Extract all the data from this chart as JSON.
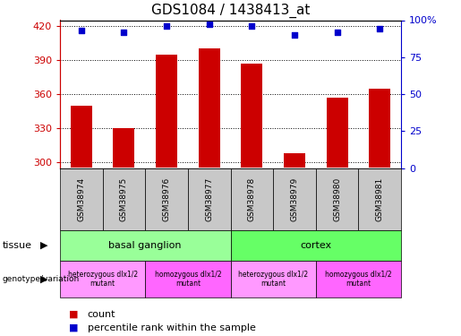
{
  "title": "GDS1084 / 1438413_at",
  "samples": [
    "GSM38974",
    "GSM38975",
    "GSM38976",
    "GSM38977",
    "GSM38978",
    "GSM38979",
    "GSM38980",
    "GSM38981"
  ],
  "counts": [
    350,
    330,
    395,
    400,
    387,
    308,
    357,
    365
  ],
  "percentiles": [
    93,
    92,
    96,
    97,
    96,
    90,
    92,
    94
  ],
  "ylim_left": [
    295,
    425
  ],
  "ylim_right": [
    0,
    100
  ],
  "yticks_left": [
    300,
    330,
    360,
    390,
    420
  ],
  "yticks_right": [
    0,
    25,
    50,
    75,
    100
  ],
  "bar_color": "#cc0000",
  "dot_color": "#0000cc",
  "tissue_labels": [
    {
      "text": "basal ganglion",
      "start": 0,
      "end": 3,
      "color": "#99ff99"
    },
    {
      "text": "cortex",
      "start": 4,
      "end": 7,
      "color": "#66ff66"
    }
  ],
  "genotype_labels": [
    {
      "text": "heterozygous dlx1/2\nmutant",
      "start": 0,
      "end": 1,
      "color": "#ff99ff"
    },
    {
      "text": "homozygous dlx1/2\nmutant",
      "start": 2,
      "end": 3,
      "color": "#ff66ff"
    },
    {
      "text": "heterozygous dlx1/2\nmutant",
      "start": 4,
      "end": 5,
      "color": "#ff99ff"
    },
    {
      "text": "homozygous dlx1/2\nmutant",
      "start": 6,
      "end": 7,
      "color": "#ff66ff"
    }
  ],
  "legend_count_label": "count",
  "legend_percentile_label": "percentile rank within the sample",
  "sample_box_color": "#c8c8c8",
  "axis_color_left": "#cc0000",
  "axis_color_right": "#0000cc",
  "fig_width": 5.15,
  "fig_height": 3.75,
  "dpi": 100
}
